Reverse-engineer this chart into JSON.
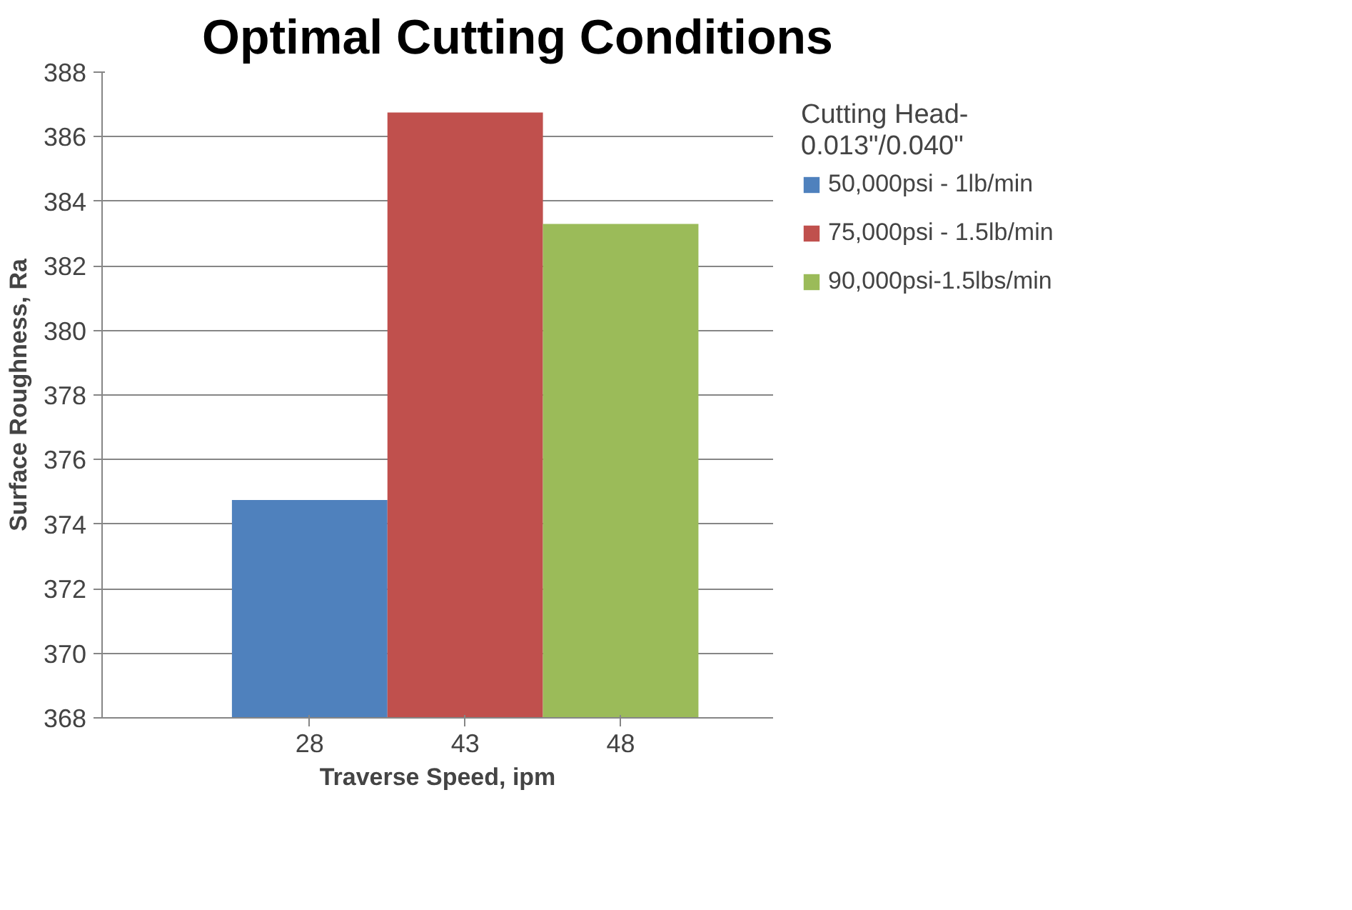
{
  "chart_data": {
    "type": "bar",
    "title": "Optimal Cutting Conditions",
    "xlabel": "Traverse Speed, ipm",
    "ylabel": "Surface Roughness, Ra",
    "legend_title": "Cutting Head-\n0.013\"/0.040\"",
    "categories": [
      "28",
      "43",
      "48"
    ],
    "series": [
      {
        "name": "50,000psi - 1lb/min",
        "color": "#4f81bd",
        "values": [
          374.75,
          null,
          null
        ]
      },
      {
        "name": "75,000psi - 1.5lb/min",
        "color": "#c0504d",
        "values": [
          null,
          386.75,
          null
        ]
      },
      {
        "name": "90,000psi-1.5lbs/min",
        "color": "#9bbb59",
        "values": [
          null,
          null,
          383.3
        ]
      }
    ],
    "ylim": [
      368,
      388
    ],
    "yticks": [
      368,
      370,
      372,
      374,
      376,
      378,
      380,
      382,
      384,
      386,
      388
    ],
    "grid": "y",
    "legend": "right"
  }
}
